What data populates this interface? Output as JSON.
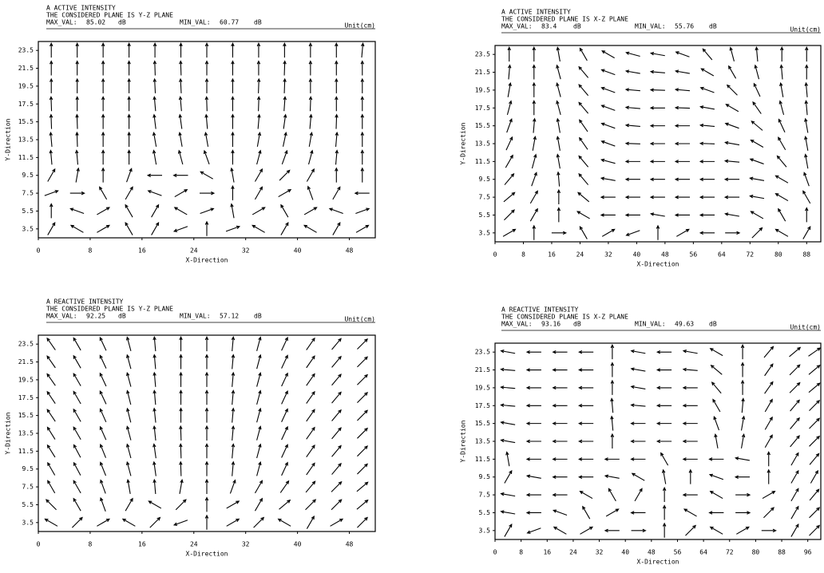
{
  "chart_data": [
    {
      "type": "quiver",
      "title": "A ACTIVE INTENSITY",
      "subtitle": "THE CONSIDERED PLANE IS Y-Z PLANE",
      "max_label": "MAX_VAL:",
      "max_val": 85.02,
      "db": "dB",
      "min_label": "MIN_VAL:",
      "min_val": 60.77,
      "unit": "Unit(cm)",
      "xlabel": "X-Direction",
      "ylabel": "Y-Direction",
      "xlim": [
        0,
        52
      ],
      "xticks": [
        0,
        8,
        16,
        24,
        32,
        40,
        48
      ],
      "ylim": [
        2.5,
        24.5
      ],
      "yticks": [
        3.5,
        5.5,
        7.5,
        9.5,
        11.5,
        13.5,
        15.5,
        17.5,
        19.5,
        21.5,
        23.5
      ],
      "x": [
        2,
        6,
        10,
        14,
        18,
        22,
        26,
        30,
        34,
        38,
        42,
        46,
        50
      ],
      "directions": [
        [
          60,
          150,
          30,
          120,
          60,
          200,
          90,
          20,
          150,
          60,
          150,
          60,
          30
        ],
        [
          90,
          160,
          30,
          120,
          60,
          150,
          20,
          100,
          30,
          120,
          30,
          160,
          20
        ],
        [
          20,
          0,
          120,
          60,
          160,
          30,
          0,
          90,
          60,
          30,
          110,
          60,
          180
        ],
        [
          60,
          80,
          90,
          70,
          180,
          180,
          150,
          100,
          60,
          45,
          60,
          90,
          90
        ],
        [
          95,
          95,
          90,
          90,
          100,
          105,
          110,
          90,
          75,
          70,
          75,
          85,
          90
        ],
        [
          95,
          92,
          90,
          90,
          100,
          100,
          100,
          90,
          80,
          78,
          80,
          85,
          90
        ],
        [
          92,
          92,
          90,
          90,
          97,
          98,
          95,
          90,
          85,
          82,
          85,
          88,
          90
        ],
        [
          92,
          90,
          90,
          90,
          95,
          95,
          92,
          90,
          88,
          86,
          88,
          90,
          90
        ],
        [
          90,
          90,
          90,
          90,
          93,
          93,
          90,
          90,
          88,
          88,
          90,
          90,
          90
        ],
        [
          90,
          90,
          90,
          90,
          92,
          92,
          90,
          90,
          90,
          88,
          90,
          90,
          90
        ],
        [
          90,
          90,
          90,
          90,
          90,
          90,
          90,
          90,
          90,
          90,
          90,
          90,
          85
        ]
      ]
    },
    {
      "type": "quiver",
      "title": "A ACTIVE INTENSITY",
      "subtitle": "THE CONSIDERED PLANE IS X-Z PLANE",
      "max_label": "MAX_VAL:",
      "max_val": 83.4,
      "db": "dB",
      "min_label": "MIN_VAL:",
      "min_val": 55.76,
      "unit": "Unit(cm)",
      "xlabel": "X-Direction",
      "ylabel": "Y-Direction",
      "xlim": [
        0,
        92
      ],
      "xticks": [
        0,
        8,
        16,
        24,
        32,
        40,
        48,
        56,
        64,
        72,
        80,
        88
      ],
      "ylim": [
        2.5,
        24.5
      ],
      "yticks": [
        3.5,
        5.5,
        7.5,
        9.5,
        11.5,
        13.5,
        15.5,
        17.5,
        19.5,
        21.5,
        23.5
      ],
      "x": [
        4,
        11,
        18,
        25,
        32,
        39,
        46,
        53,
        60,
        67,
        74,
        81,
        88
      ],
      "directions": [
        [
          30,
          90,
          0,
          120,
          30,
          200,
          90,
          30,
          180,
          0,
          45,
          150,
          60
        ],
        [
          45,
          60,
          90,
          150,
          180,
          180,
          170,
          180,
          180,
          170,
          150,
          120,
          90
        ],
        [
          40,
          60,
          90,
          140,
          180,
          180,
          180,
          180,
          180,
          180,
          170,
          150,
          120
        ],
        [
          50,
          70,
          95,
          130,
          170,
          180,
          180,
          180,
          180,
          180,
          170,
          150,
          110
        ],
        [
          60,
          75,
          100,
          130,
          165,
          180,
          180,
          180,
          180,
          175,
          160,
          130,
          100
        ],
        [
          65,
          80,
          100,
          125,
          160,
          178,
          180,
          180,
          178,
          170,
          150,
          120,
          100
        ],
        [
          70,
          85,
          100,
          125,
          160,
          175,
          180,
          180,
          175,
          160,
          140,
          115,
          100
        ],
        [
          75,
          90,
          105,
          130,
          160,
          175,
          180,
          178,
          170,
          150,
          125,
          105,
          95
        ],
        [
          80,
          90,
          105,
          130,
          160,
          175,
          178,
          175,
          160,
          135,
          115,
          100,
          95
        ],
        [
          85,
          90,
          105,
          130,
          160,
          170,
          175,
          170,
          150,
          120,
          105,
          95,
          90
        ],
        [
          90,
          90,
          100,
          120,
          150,
          165,
          170,
          160,
          130,
          105,
          95,
          90,
          90
        ]
      ]
    },
    {
      "type": "quiver",
      "title": "A REACTIVE INTENSITY",
      "subtitle": "THE CONSIDERED PLANE IS Y-Z PLANE",
      "max_label": "MAX_VAL:",
      "max_val": 92.25,
      "db": "dB",
      "min_label": "MIN_VAL:",
      "min_val": 57.12,
      "unit": "Unit(cm)",
      "xlabel": "X-Direction",
      "ylabel": "Y-Direction",
      "xlim": [
        0,
        52
      ],
      "xticks": [
        0,
        8,
        16,
        24,
        32,
        40,
        48
      ],
      "ylim": [
        2.5,
        24.5
      ],
      "yticks": [
        3.5,
        5.5,
        7.5,
        9.5,
        11.5,
        13.5,
        15.5,
        17.5,
        19.5,
        21.5,
        23.5
      ],
      "x": [
        2,
        6,
        10,
        14,
        18,
        22,
        26,
        30,
        34,
        38,
        42,
        46,
        50
      ],
      "directions": [
        [
          150,
          45,
          30,
          150,
          45,
          200,
          90,
          30,
          45,
          150,
          60,
          30,
          45
        ],
        [
          135,
          120,
          110,
          60,
          150,
          45,
          90,
          30,
          60,
          40,
          45,
          45,
          40
        ],
        [
          120,
          120,
          110,
          100,
          95,
          80,
          90,
          70,
          60,
          55,
          50,
          45,
          40
        ],
        [
          120,
          118,
          112,
          105,
          98,
          92,
          90,
          85,
          75,
          65,
          55,
          50,
          45
        ],
        [
          122,
          118,
          112,
          105,
          98,
          92,
          90,
          85,
          75,
          65,
          55,
          50,
          45
        ],
        [
          122,
          120,
          114,
          105,
          96,
          92,
          90,
          85,
          75,
          65,
          55,
          50,
          45
        ],
        [
          124,
          120,
          114,
          104,
          96,
          90,
          90,
          85,
          75,
          65,
          55,
          50,
          45
        ],
        [
          124,
          120,
          115,
          104,
          95,
          90,
          90,
          85,
          75,
          65,
          55,
          50,
          45
        ],
        [
          125,
          120,
          115,
          105,
          95,
          90,
          90,
          85,
          75,
          65,
          55,
          50,
          45
        ],
        [
          125,
          120,
          115,
          105,
          95,
          90,
          90,
          85,
          75,
          65,
          55,
          50,
          45
        ],
        [
          125,
          120,
          115,
          105,
          95,
          90,
          90,
          85,
          75,
          65,
          55,
          50,
          45
        ]
      ]
    },
    {
      "type": "quiver",
      "title": "A REACTIVE INTENSITY",
      "subtitle": "THE CONSIDERED PLANE IS X-Z PLANE",
      "max_label": "MAX_VAL:",
      "max_val": 93.16,
      "db": "dB",
      "min_label": "MIN_VAL:",
      "min_val": 49.63,
      "unit": "Unit(cm)",
      "xlabel": "X-Direction",
      "ylabel": "Y-Direction",
      "xlim": [
        0,
        100
      ],
      "xticks": [
        0,
        8,
        16,
        24,
        32,
        40,
        48,
        56,
        64,
        72,
        80,
        88,
        96
      ],
      "ylim": [
        2.5,
        24.5
      ],
      "yticks": [
        3.5,
        5.5,
        7.5,
        9.5,
        11.5,
        13.5,
        15.5,
        17.5,
        19.5,
        21.5,
        23.5
      ],
      "x": [
        4,
        12,
        20,
        28,
        36,
        44,
        52,
        60,
        68,
        76,
        84,
        92,
        98
      ],
      "directions": [
        [
          60,
          200,
          150,
          30,
          180,
          0,
          90,
          45,
          150,
          30,
          0,
          60,
          45
        ],
        [
          170,
          180,
          160,
          120,
          30,
          180,
          90,
          150,
          180,
          0,
          45,
          60,
          45
        ],
        [
          170,
          180,
          180,
          150,
          120,
          60,
          90,
          180,
          150,
          0,
          30,
          60,
          50
        ],
        [
          60,
          170,
          180,
          180,
          170,
          150,
          100,
          90,
          160,
          180,
          90,
          60,
          60
        ],
        [
          100,
          180,
          180,
          180,
          180,
          180,
          120,
          180,
          180,
          170,
          90,
          60,
          50
        ],
        [
          170,
          180,
          180,
          180,
          90,
          180,
          180,
          180,
          100,
          80,
          60,
          50,
          45
        ],
        [
          170,
          180,
          180,
          180,
          95,
          180,
          180,
          180,
          110,
          80,
          60,
          50,
          45
        ],
        [
          175,
          180,
          180,
          180,
          95,
          175,
          180,
          180,
          120,
          85,
          60,
          50,
          45
        ],
        [
          175,
          180,
          180,
          180,
          90,
          170,
          180,
          180,
          130,
          90,
          55,
          45,
          40
        ],
        [
          175,
          180,
          180,
          180,
          90,
          170,
          180,
          175,
          140,
          90,
          55,
          45,
          40
        ],
        [
          170,
          180,
          180,
          180,
          90,
          170,
          180,
          170,
          150,
          90,
          50,
          40,
          35
        ]
      ]
    }
  ]
}
